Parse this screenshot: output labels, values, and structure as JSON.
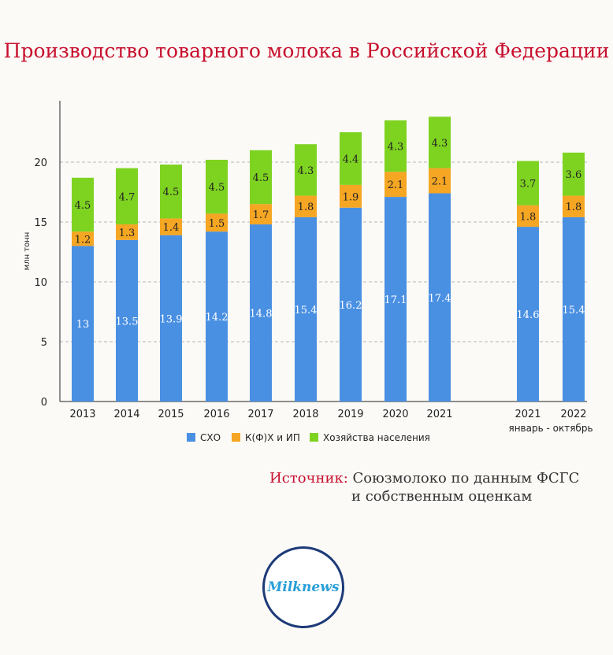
{
  "header": {
    "title": "Производство товарного молока в Российской Федерации"
  },
  "chart_data": {
    "type": "bar",
    "stacked": true,
    "categories": [
      "2013",
      "2014",
      "2015",
      "2016",
      "2017",
      "2018",
      "2019",
      "2020",
      "2021",
      "2021",
      "2022"
    ],
    "category_group_label": "январь - октябрь",
    "category_group_range": [
      9,
      10
    ],
    "ylabel": "млн тонн",
    "xlabel": "",
    "ylim": [
      0,
      25
    ],
    "yticks": [
      0,
      5,
      10,
      15,
      20
    ],
    "grid": true,
    "legend_position": "bottom",
    "series": [
      {
        "name": "СХО",
        "color": "#4a90e2",
        "values": [
          13,
          13.5,
          13.9,
          14.2,
          14.8,
          15.4,
          16.2,
          17.1,
          17.4,
          14.6,
          15.4
        ]
      },
      {
        "name": "К(Ф)Х и ИП",
        "color": "#f5a623",
        "values": [
          1.2,
          1.3,
          1.4,
          1.5,
          1.7,
          1.8,
          1.9,
          2.1,
          2.1,
          1.8,
          1.8
        ]
      },
      {
        "name": "Хозяйства населения",
        "color": "#7ed321",
        "values": [
          4.5,
          4.7,
          4.5,
          4.5,
          4.5,
          4.3,
          4.4,
          4.3,
          4.3,
          3.7,
          3.6
        ]
      }
    ]
  },
  "source": {
    "label": "Источник:",
    "line1": "Союзмолоко по данным ФСГС",
    "line2": "и собственным оценкам"
  },
  "logo": {
    "text": "Milknews"
  }
}
